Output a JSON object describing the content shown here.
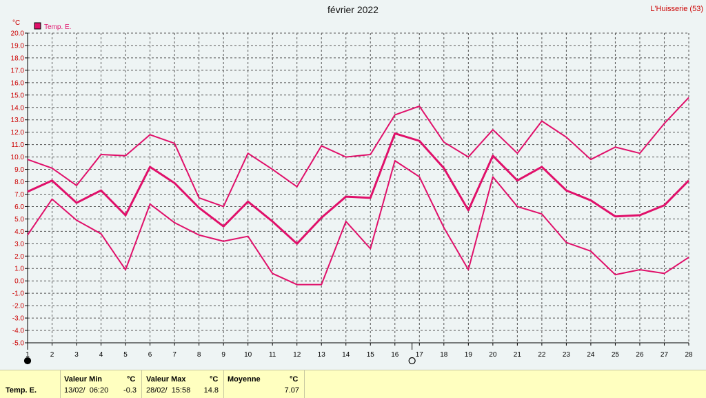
{
  "header": {
    "title": "février 2022",
    "station": "L'Huisserie (53)"
  },
  "colors": {
    "series": "#e0106a",
    "grid": "#555555",
    "background": "#eef4f4",
    "footer": "#ffffc0"
  },
  "chart_data": {
    "type": "line",
    "title": "février 2022",
    "ylabel": "°C",
    "ylim": [
      -5,
      20
    ],
    "yticks": [
      "20.0",
      "19.0",
      "18.0",
      "17.0",
      "16.0",
      "15.0",
      "14.0",
      "13.0",
      "12.0",
      "11.0",
      "10.0",
      "9.0",
      "8.0",
      "7.0",
      "6.0",
      "5.0",
      "4.0",
      "3.0",
      "2.0",
      "1.0",
      "0.0",
      "-1.0",
      "-2.0",
      "-3.0",
      "-4.0",
      "-5.0"
    ],
    "x": [
      1,
      2,
      3,
      4,
      5,
      6,
      7,
      8,
      9,
      10,
      11,
      12,
      13,
      14,
      15,
      16,
      17,
      18,
      19,
      20,
      21,
      22,
      23,
      24,
      25,
      26,
      27,
      28
    ],
    "grid": true,
    "legend": "top-left",
    "legend_label": "Temp. E.",
    "moon_markers": [
      {
        "day": 1,
        "symbol": "full-moon-icon"
      },
      {
        "day": 16.7,
        "symbol": "new-moon-icon"
      }
    ],
    "series": [
      {
        "values": [
          9.8,
          9.1,
          7.7,
          10.2,
          10.1,
          11.8,
          11.1,
          6.7,
          6.0,
          10.3,
          9.0,
          7.6,
          10.9,
          10.0,
          10.2,
          13.4,
          14.1,
          11.2,
          10.0,
          12.2,
          10.3,
          12.9,
          11.6,
          9.8,
          10.8,
          10.3,
          12.7,
          14.8
        ]
      },
      {
        "values": [
          7.2,
          8.1,
          6.3,
          7.3,
          5.3,
          9.2,
          7.9,
          5.9,
          4.4,
          6.4,
          4.8,
          3.0,
          5.1,
          6.8,
          6.7,
          11.9,
          11.3,
          9.1,
          5.7,
          10.1,
          8.1,
          9.2,
          7.3,
          6.5,
          5.2,
          5.3,
          6.1,
          8.1
        ]
      },
      {
        "values": [
          3.7,
          6.6,
          4.9,
          3.8,
          0.9,
          6.2,
          4.7,
          3.7,
          3.2,
          3.6,
          0.6,
          -0.3,
          -0.3,
          4.8,
          2.6,
          9.7,
          8.4,
          4.3,
          0.9,
          8.4,
          6.0,
          5.4,
          3.1,
          2.4,
          0.5,
          0.9,
          0.6,
          1.9
        ]
      }
    ]
  },
  "footer": {
    "row_label": "Temp. E.",
    "min_header": "Valeur Min",
    "min_unit": "°C",
    "min_date": "13/02/  06:20",
    "min_value": "-0.3",
    "max_header": "Valeur Max",
    "max_unit": "°C",
    "max_date": "28/02/  15:58",
    "max_value": "14.8",
    "avg_header": "Moyenne",
    "avg_unit": "°C",
    "avg_value": "7.07"
  }
}
